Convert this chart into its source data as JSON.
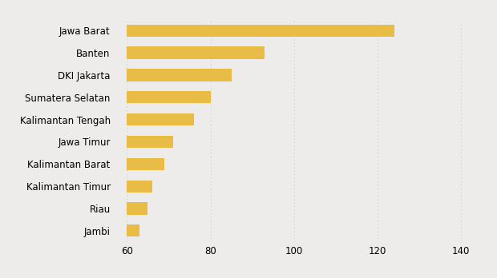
{
  "categories": [
    "Jawa Barat",
    "Banten",
    "DKI Jakarta",
    "Sumatera Selatan",
    "Kalimantan Tengah",
    "Jawa Timur",
    "Kalimantan Barat",
    "Kalimantan Timur",
    "Riau",
    "Jambi"
  ],
  "values": [
    124,
    93,
    85,
    80,
    76,
    71,
    69,
    66,
    65,
    63
  ],
  "bar_color": "#E8BC45",
  "background_color": "#EEECEA",
  "plot_bg_color": "#EEECEA",
  "xlim": [
    57,
    145
  ],
  "xmin": 60,
  "xticks": [
    60,
    80,
    100,
    120,
    140
  ],
  "grid_color": "#CCCCCC",
  "tick_fontsize": 8.5,
  "label_fontsize": 8.5,
  "bar_height": 0.55
}
